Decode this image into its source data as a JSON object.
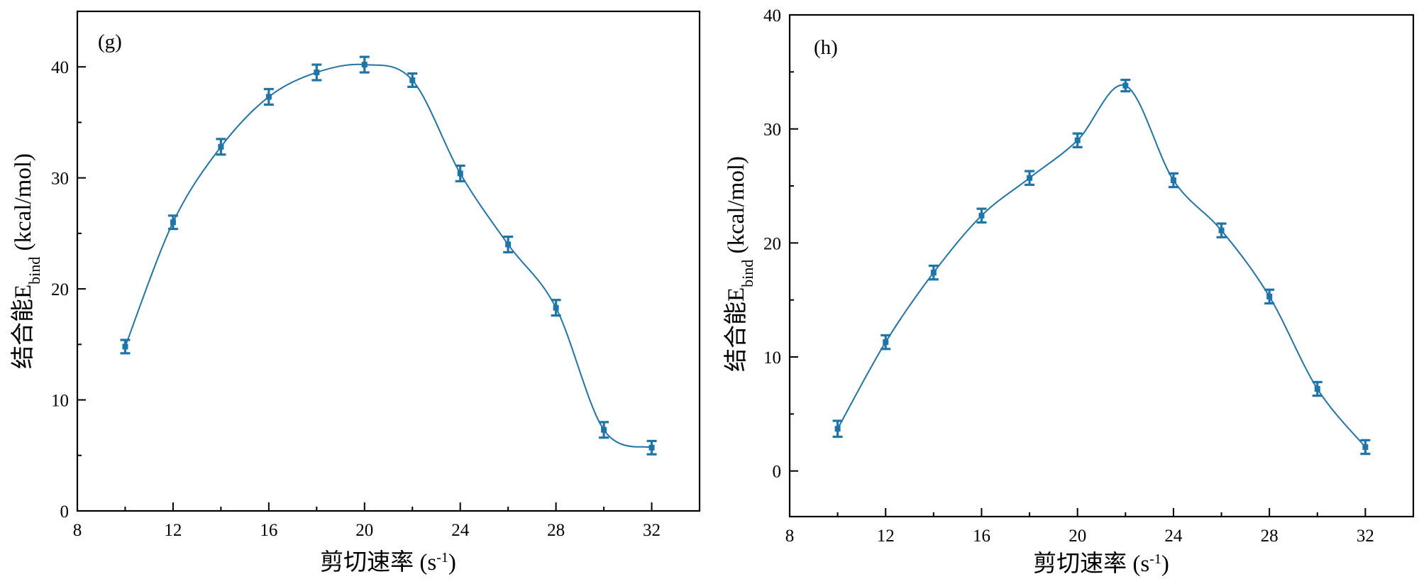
{
  "colors": {
    "series": "#1f74a8",
    "axis": "#000000"
  },
  "chart_data": [
    {
      "type": "line",
      "panel_label": "(g)",
      "title": "",
      "xlabel": "剪切速率 (s",
      "xlabel_sup": "-1",
      "xlabel_close": ")",
      "ylabel_prefix": "结合能E",
      "ylabel_sub": "bind",
      "ylabel_suffix": " (kcal/mol)",
      "xlim": [
        8,
        34
      ],
      "ylim": [
        0,
        45
      ],
      "xticks": [
        8,
        12,
        16,
        20,
        24,
        28,
        32
      ],
      "yticks": [
        0,
        10,
        20,
        30,
        40
      ],
      "x": [
        10,
        12,
        14,
        16,
        18,
        20,
        22,
        24,
        26,
        28,
        30,
        32
      ],
      "values": [
        14.8,
        26.0,
        32.8,
        37.3,
        39.5,
        40.2,
        38.8,
        30.4,
        24.0,
        18.3,
        7.3,
        5.7
      ],
      "errors": [
        0.6,
        0.6,
        0.7,
        0.7,
        0.7,
        0.7,
        0.6,
        0.7,
        0.7,
        0.7,
        0.7,
        0.6
      ],
      "smooth": true
    },
    {
      "type": "line",
      "panel_label": "(h)",
      "title": "",
      "xlabel": "剪切速率 (s",
      "xlabel_sup": "-1",
      "xlabel_close": ")",
      "ylabel_prefix": "结合能E",
      "ylabel_sub": "bind",
      "ylabel_suffix": " (kcal/mol)",
      "xlim": [
        8,
        34
      ],
      "ylim": [
        -4,
        40
      ],
      "xticks": [
        8,
        12,
        16,
        20,
        24,
        28,
        32
      ],
      "yticks": [
        0,
        10,
        20,
        30,
        40
      ],
      "x": [
        10,
        12,
        14,
        16,
        18,
        20,
        22,
        24,
        26,
        28,
        30,
        32
      ],
      "values": [
        3.7,
        11.3,
        17.4,
        22.4,
        25.7,
        29.0,
        33.8,
        25.5,
        21.1,
        15.3,
        7.2,
        2.1
      ],
      "errors": [
        0.7,
        0.6,
        0.6,
        0.6,
        0.6,
        0.6,
        0.5,
        0.6,
        0.6,
        0.6,
        0.6,
        0.6
      ],
      "smooth": true
    }
  ]
}
